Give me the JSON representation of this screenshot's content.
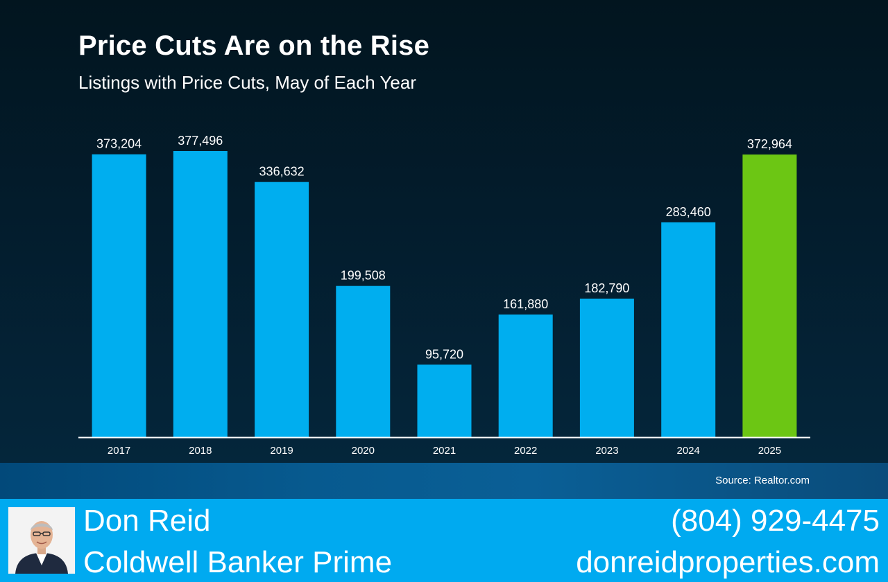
{
  "header": {
    "title": "Price Cuts Are on the Rise",
    "subtitle": "Listings with Price Cuts, May of Each Year"
  },
  "chart_data": {
    "type": "bar",
    "title": "Price Cuts Are on the Rise",
    "subtitle": "Listings with Price Cuts, May of Each Year",
    "xlabel": "",
    "ylabel": "",
    "categories": [
      "2017",
      "2018",
      "2019",
      "2020",
      "2021",
      "2022",
      "2023",
      "2024",
      "2025"
    ],
    "values": [
      373204,
      377496,
      336632,
      199508,
      95720,
      161880,
      182790,
      283460,
      372964
    ],
    "value_labels": [
      "373,204",
      "377,496",
      "336,632",
      "199,508",
      "95,720",
      "161,880",
      "182,790",
      "283,460",
      "372,964"
    ],
    "ylim": [
      0,
      380000
    ],
    "grid": false,
    "legend": "none",
    "highlight_category": "2025",
    "bar_color": "#00aeef",
    "highlight_color": "#6cc614"
  },
  "source": "Source: Realtor.com",
  "footer": {
    "name": "Don Reid",
    "company": "Coldwell Banker Prime",
    "phone": "(804) 929-4475",
    "website": "donreidproperties.com"
  },
  "colors": {
    "background_top": "#02151f",
    "background_bottom": "#04263b",
    "footer": "#00aaf0",
    "text": "#ffffff"
  }
}
